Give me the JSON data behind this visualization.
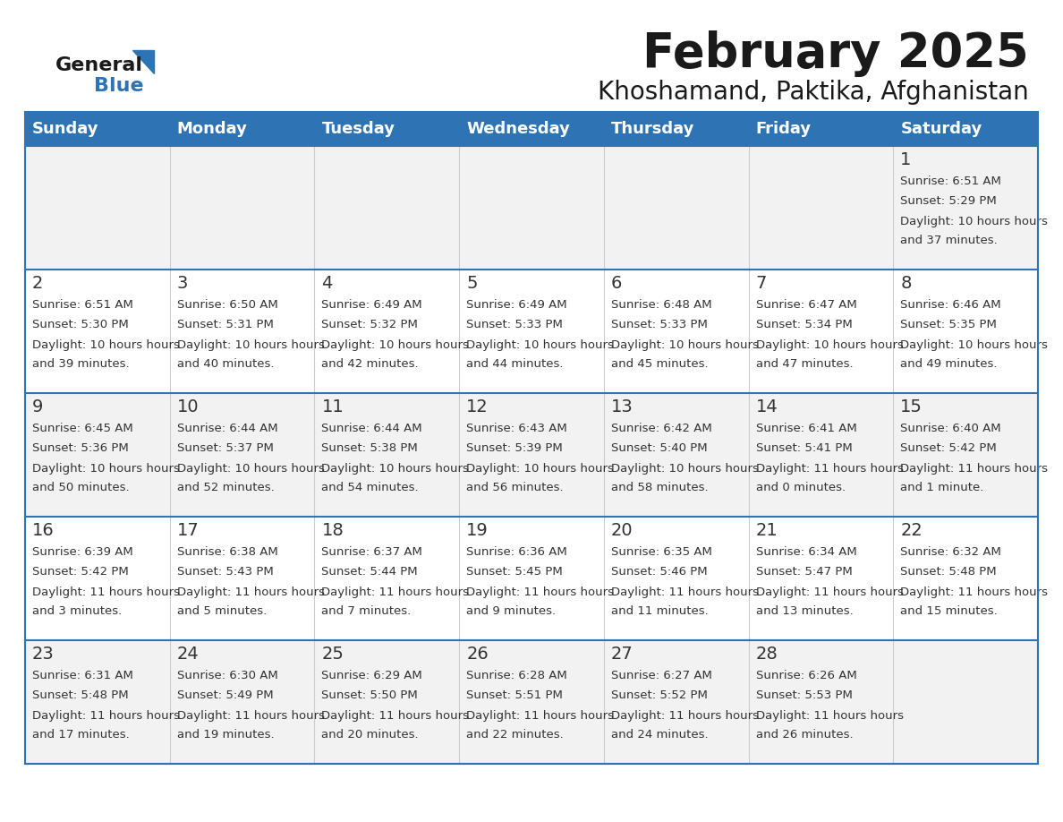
{
  "title": "February 2025",
  "subtitle": "Khoshamand, Paktika, Afghanistan",
  "header_bg": "#2E74B5",
  "header_text": "#FFFFFF",
  "header_days": [
    "Sunday",
    "Monday",
    "Tuesday",
    "Wednesday",
    "Thursday",
    "Friday",
    "Saturday"
  ],
  "alt_row_bg": "#F2F2F2",
  "white_bg": "#FFFFFF",
  "cell_border": "#2E74B5",
  "day_number_color": "#333333",
  "info_text_color": "#333333",
  "title_color": "#1a1a1a",
  "logo_general_color": "#1a1a1a",
  "logo_blue_color": "#2E74B5",
  "calendar_data": [
    [
      null,
      null,
      null,
      null,
      null,
      null,
      {
        "day": 1,
        "sunrise": "6:51 AM",
        "sunset": "5:29 PM",
        "daylight": "10 hours and 37 minutes."
      }
    ],
    [
      {
        "day": 2,
        "sunrise": "6:51 AM",
        "sunset": "5:30 PM",
        "daylight": "10 hours and 39 minutes."
      },
      {
        "day": 3,
        "sunrise": "6:50 AM",
        "sunset": "5:31 PM",
        "daylight": "10 hours and 40 minutes."
      },
      {
        "day": 4,
        "sunrise": "6:49 AM",
        "sunset": "5:32 PM",
        "daylight": "10 hours and 42 minutes."
      },
      {
        "day": 5,
        "sunrise": "6:49 AM",
        "sunset": "5:33 PM",
        "daylight": "10 hours and 44 minutes."
      },
      {
        "day": 6,
        "sunrise": "6:48 AM",
        "sunset": "5:33 PM",
        "daylight": "10 hours and 45 minutes."
      },
      {
        "day": 7,
        "sunrise": "6:47 AM",
        "sunset": "5:34 PM",
        "daylight": "10 hours and 47 minutes."
      },
      {
        "day": 8,
        "sunrise": "6:46 AM",
        "sunset": "5:35 PM",
        "daylight": "10 hours and 49 minutes."
      }
    ],
    [
      {
        "day": 9,
        "sunrise": "6:45 AM",
        "sunset": "5:36 PM",
        "daylight": "10 hours and 50 minutes."
      },
      {
        "day": 10,
        "sunrise": "6:44 AM",
        "sunset": "5:37 PM",
        "daylight": "10 hours and 52 minutes."
      },
      {
        "day": 11,
        "sunrise": "6:44 AM",
        "sunset": "5:38 PM",
        "daylight": "10 hours and 54 minutes."
      },
      {
        "day": 12,
        "sunrise": "6:43 AM",
        "sunset": "5:39 PM",
        "daylight": "10 hours and 56 minutes."
      },
      {
        "day": 13,
        "sunrise": "6:42 AM",
        "sunset": "5:40 PM",
        "daylight": "10 hours and 58 minutes."
      },
      {
        "day": 14,
        "sunrise": "6:41 AM",
        "sunset": "5:41 PM",
        "daylight": "11 hours and 0 minutes."
      },
      {
        "day": 15,
        "sunrise": "6:40 AM",
        "sunset": "5:42 PM",
        "daylight": "11 hours and 1 minute."
      }
    ],
    [
      {
        "day": 16,
        "sunrise": "6:39 AM",
        "sunset": "5:42 PM",
        "daylight": "11 hours and 3 minutes."
      },
      {
        "day": 17,
        "sunrise": "6:38 AM",
        "sunset": "5:43 PM",
        "daylight": "11 hours and 5 minutes."
      },
      {
        "day": 18,
        "sunrise": "6:37 AM",
        "sunset": "5:44 PM",
        "daylight": "11 hours and 7 minutes."
      },
      {
        "day": 19,
        "sunrise": "6:36 AM",
        "sunset": "5:45 PM",
        "daylight": "11 hours and 9 minutes."
      },
      {
        "day": 20,
        "sunrise": "6:35 AM",
        "sunset": "5:46 PM",
        "daylight": "11 hours and 11 minutes."
      },
      {
        "day": 21,
        "sunrise": "6:34 AM",
        "sunset": "5:47 PM",
        "daylight": "11 hours and 13 minutes."
      },
      {
        "day": 22,
        "sunrise": "6:32 AM",
        "sunset": "5:48 PM",
        "daylight": "11 hours and 15 minutes."
      }
    ],
    [
      {
        "day": 23,
        "sunrise": "6:31 AM",
        "sunset": "5:48 PM",
        "daylight": "11 hours and 17 minutes."
      },
      {
        "day": 24,
        "sunrise": "6:30 AM",
        "sunset": "5:49 PM",
        "daylight": "11 hours and 19 minutes."
      },
      {
        "day": 25,
        "sunrise": "6:29 AM",
        "sunset": "5:50 PM",
        "daylight": "11 hours and 20 minutes."
      },
      {
        "day": 26,
        "sunrise": "6:28 AM",
        "sunset": "5:51 PM",
        "daylight": "11 hours and 22 minutes."
      },
      {
        "day": 27,
        "sunrise": "6:27 AM",
        "sunset": "5:52 PM",
        "daylight": "11 hours and 24 minutes."
      },
      {
        "day": 28,
        "sunrise": "6:26 AM",
        "sunset": "5:53 PM",
        "daylight": "11 hours and 26 minutes."
      },
      null
    ]
  ],
  "figsize": [
    11.88,
    9.18
  ],
  "dpi": 100
}
